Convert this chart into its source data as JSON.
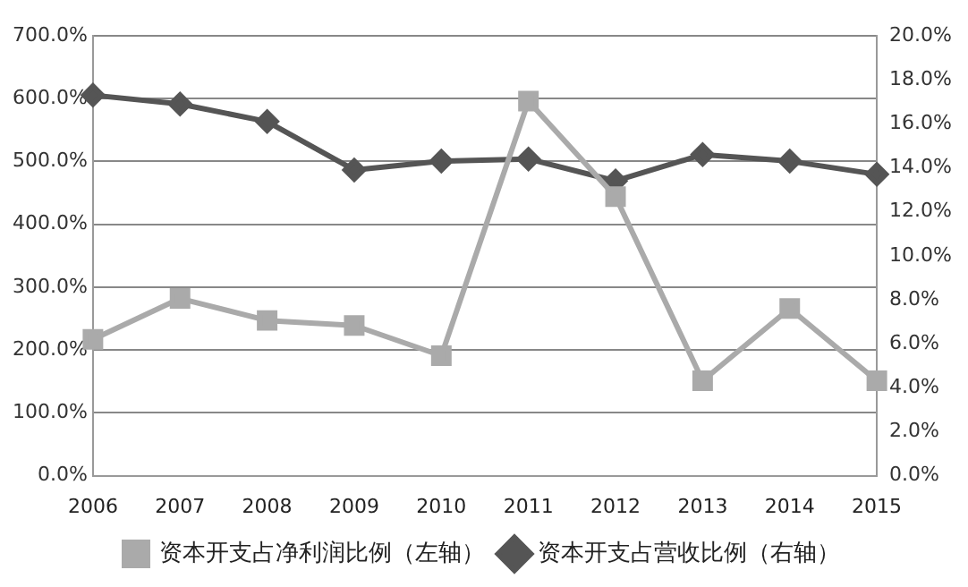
{
  "chart_data": {
    "type": "line",
    "categories": [
      "2006",
      "2007",
      "2008",
      "2009",
      "2010",
      "2011",
      "2012",
      "2013",
      "2014",
      "2015"
    ],
    "series": [
      {
        "name": "资本开支占净利润比例（左轴）",
        "color": "#aaaaaa",
        "marker": "square",
        "values": [
          217,
          282,
          247,
          239,
          191,
          596,
          444,
          151,
          266,
          151
        ]
      },
      {
        "name": "资本开支占营收比例（右轴）",
        "color": "#555555",
        "marker": "diamond",
        "axis": "y2",
        "values": [
          17.3,
          16.9,
          16.1,
          13.9,
          14.3,
          14.4,
          13.4,
          14.6,
          14.3,
          13.7
        ]
      }
    ],
    "ylim": [
      0,
      700
    ],
    "yticks": [
      {
        "value": 0,
        "label": "0.0%"
      },
      {
        "value": 100,
        "label": "100.0%"
      },
      {
        "value": 200,
        "label": "200.0%"
      },
      {
        "value": 300,
        "label": "300.0%"
      },
      {
        "value": 400,
        "label": "400.0%"
      },
      {
        "value": 500,
        "label": "500.0%"
      },
      {
        "value": 600,
        "label": "600.0%"
      },
      {
        "value": 700,
        "label": "700.0%"
      }
    ],
    "y2lim": [
      0,
      20
    ],
    "y2ticks": [
      {
        "value": 0,
        "label": "0.0%"
      },
      {
        "value": 2,
        "label": "2.0%"
      },
      {
        "value": 4,
        "label": "4.0%"
      },
      {
        "value": 6,
        "label": "6.0%"
      },
      {
        "value": 8,
        "label": "8.0%"
      },
      {
        "value": 10,
        "label": "10.0%"
      },
      {
        "value": 12,
        "label": "12.0%"
      },
      {
        "value": 14,
        "label": "14.0%"
      },
      {
        "value": 16,
        "label": "16.0%"
      },
      {
        "value": 18,
        "label": "18.0%"
      },
      {
        "value": 20,
        "label": "20.0%"
      }
    ],
    "grid": "y",
    "legend": "bottom",
    "line_style": "solid"
  }
}
